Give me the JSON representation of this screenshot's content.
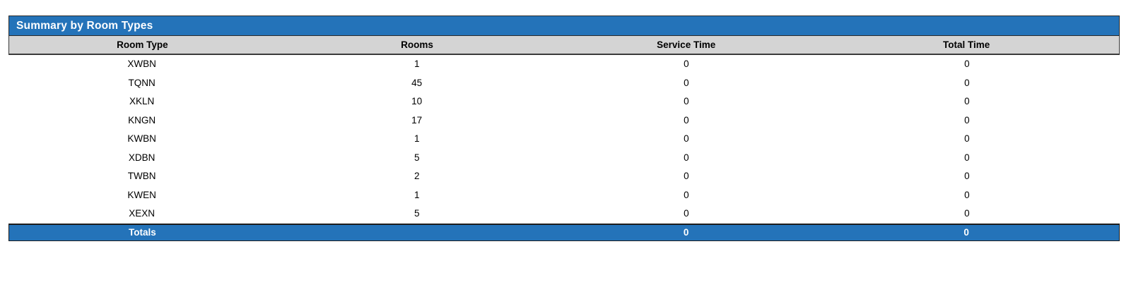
{
  "report": {
    "title": "Summary by Room Types",
    "columns": [
      "Room Type",
      "Rooms",
      "Service Time",
      "Total Time"
    ],
    "rows": [
      {
        "room_type": "XWBN",
        "rooms": "1",
        "service_time": "0",
        "total_time": "0"
      },
      {
        "room_type": "TQNN",
        "rooms": "45",
        "service_time": "0",
        "total_time": "0"
      },
      {
        "room_type": "XKLN",
        "rooms": "10",
        "service_time": "0",
        "total_time": "0"
      },
      {
        "room_type": "KNGN",
        "rooms": "17",
        "service_time": "0",
        "total_time": "0"
      },
      {
        "room_type": "KWBN",
        "rooms": "1",
        "service_time": "0",
        "total_time": "0"
      },
      {
        "room_type": "XDBN",
        "rooms": "5",
        "service_time": "0",
        "total_time": "0"
      },
      {
        "room_type": "TWBN",
        "rooms": "2",
        "service_time": "0",
        "total_time": "0"
      },
      {
        "room_type": "KWEN",
        "rooms": "1",
        "service_time": "0",
        "total_time": "0"
      },
      {
        "room_type": "XEXN",
        "rooms": "5",
        "service_time": "0",
        "total_time": "0"
      }
    ],
    "totals": {
      "label": "Totals",
      "rooms": "",
      "service_time": "0",
      "total_time": "0"
    },
    "colors": {
      "title_bar_blue": "#2473B9",
      "column_header_gray": "#D4D4D4",
      "totals_row_blue": "#2473B9",
      "border_dark": "#2B2B2B",
      "title_text": "#FFFFFF",
      "body_text": "#000000"
    }
  }
}
